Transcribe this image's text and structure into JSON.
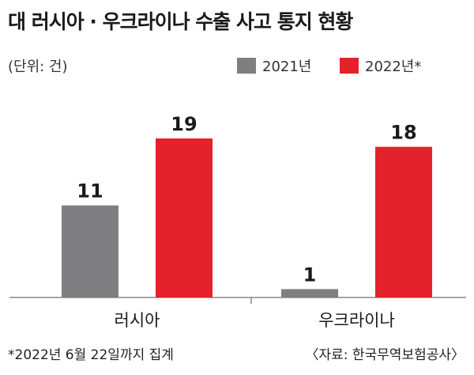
{
  "title": "대 러시아 · 우크라이나 수출 사고 통지 현황",
  "unit": "(단위: 건)",
  "footnote": "*2022년 6월 22일까지 집계",
  "source": "〈자료: 한국무역보험공사〉",
  "colors": {
    "series_2021": "#7f7f81",
    "series_2022": "#e3222b",
    "axis": "#888888"
  },
  "chart_data": {
    "type": "bar",
    "categories": [
      "러시아",
      "우크라이나"
    ],
    "series": [
      {
        "name": "2021년",
        "values": [
          11,
          1
        ]
      },
      {
        "name": "2022년*",
        "values": [
          19,
          18
        ]
      }
    ],
    "ylim": [
      0,
      21
    ],
    "legend": "top-right",
    "grid": false
  }
}
